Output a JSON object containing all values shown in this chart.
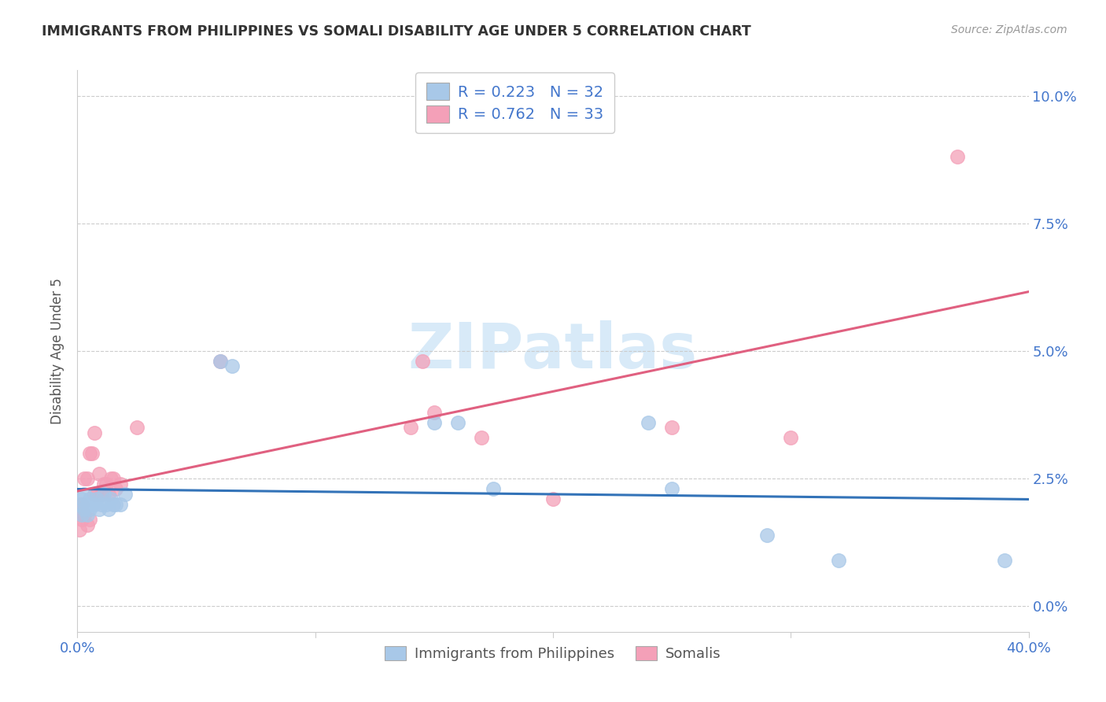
{
  "title": "IMMIGRANTS FROM PHILIPPINES VS SOMALI DISABILITY AGE UNDER 5 CORRELATION CHART",
  "source": "Source: ZipAtlas.com",
  "ylabel": "Disability Age Under 5",
  "legend_blue_r": "0.223",
  "legend_blue_n": "32",
  "legend_pink_r": "0.762",
  "legend_pink_n": "33",
  "legend_blue_label": "Immigrants from Philippines",
  "legend_pink_label": "Somalis",
  "color_blue_fill": "#a8c8e8",
  "color_pink_fill": "#f4a0b8",
  "color_blue_line": "#3373b8",
  "color_pink_line": "#e06080",
  "color_blue_text": "#4477cc",
  "color_pink_text": "#4477cc",
  "color_axis_text": "#4477cc",
  "watermark_color": "#d8eaf8",
  "xlim": [
    0.0,
    0.4
  ],
  "ylim": [
    -0.005,
    0.105
  ],
  "ytick_vals": [
    0.0,
    0.025,
    0.05,
    0.075,
    0.1
  ],
  "ytick_labels": [
    "0.0%",
    "2.5%",
    "5.0%",
    "7.5%",
    "10.0%"
  ],
  "xtick_vals": [
    0.0,
    0.4
  ],
  "xtick_labels": [
    "0.0%",
    "40.0%"
  ],
  "blue_x": [
    0.001,
    0.002,
    0.002,
    0.003,
    0.003,
    0.004,
    0.004,
    0.005,
    0.005,
    0.006,
    0.007,
    0.008,
    0.009,
    0.01,
    0.011,
    0.012,
    0.013,
    0.014,
    0.015,
    0.016,
    0.018,
    0.02,
    0.06,
    0.065,
    0.15,
    0.16,
    0.175,
    0.24,
    0.25,
    0.29,
    0.32,
    0.39
  ],
  "blue_y": [
    0.02,
    0.021,
    0.018,
    0.019,
    0.022,
    0.02,
    0.018,
    0.021,
    0.019,
    0.02,
    0.02,
    0.021,
    0.019,
    0.02,
    0.022,
    0.02,
    0.019,
    0.021,
    0.02,
    0.02,
    0.02,
    0.022,
    0.048,
    0.047,
    0.036,
    0.036,
    0.023,
    0.036,
    0.023,
    0.014,
    0.009,
    0.009
  ],
  "pink_x": [
    0.001,
    0.001,
    0.002,
    0.002,
    0.003,
    0.003,
    0.004,
    0.004,
    0.005,
    0.005,
    0.006,
    0.007,
    0.007,
    0.008,
    0.009,
    0.01,
    0.011,
    0.012,
    0.013,
    0.014,
    0.015,
    0.016,
    0.018,
    0.025,
    0.06,
    0.14,
    0.145,
    0.15,
    0.17,
    0.2,
    0.25,
    0.3,
    0.37
  ],
  "pink_y": [
    0.015,
    0.018,
    0.017,
    0.02,
    0.018,
    0.025,
    0.016,
    0.025,
    0.017,
    0.03,
    0.03,
    0.022,
    0.034,
    0.022,
    0.026,
    0.022,
    0.024,
    0.024,
    0.022,
    0.025,
    0.025,
    0.023,
    0.024,
    0.035,
    0.048,
    0.035,
    0.048,
    0.038,
    0.033,
    0.021,
    0.035,
    0.033,
    0.088
  ]
}
